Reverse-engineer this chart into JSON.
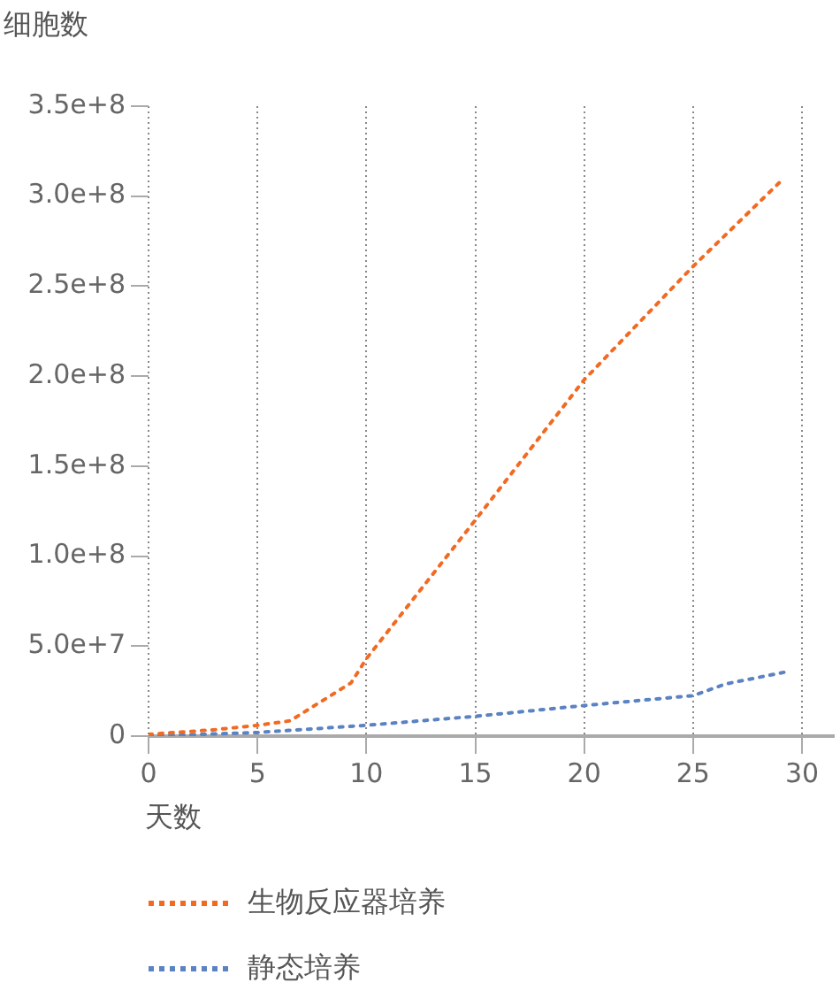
{
  "chart_data": {
    "type": "line",
    "ylabel": "细胞数",
    "xlabel": "天数",
    "xlim": [
      0,
      31.5
    ],
    "xticks": [
      0,
      5,
      10,
      15,
      20,
      25,
      30
    ],
    "ylim": [
      0,
      350000000
    ],
    "yticks": [
      {
        "value": 0,
        "label": "0"
      },
      {
        "value": 50000000,
        "label": "5.0e+7"
      },
      {
        "value": 100000000,
        "label": "1.0e+8"
      },
      {
        "value": 150000000,
        "label": "1.5e+8"
      },
      {
        "value": 200000000,
        "label": "2.0e+8"
      },
      {
        "value": 250000000,
        "label": "2.5e+8"
      },
      {
        "value": 300000000,
        "label": "3.0e+8"
      },
      {
        "value": 350000000,
        "label": "3.5e+8"
      }
    ],
    "grid": "x",
    "legend": "bottom",
    "marker": "none",
    "line_style": "dotted",
    "series": [
      {
        "name": "生物反应器培养",
        "color": "#f26a22",
        "x": [
          0,
          3,
          5,
          6.5,
          9.3,
          10,
          15,
          20,
          25,
          29
        ],
        "values": [
          1000000,
          3500000,
          6000000,
          8500000,
          29600000,
          43000000,
          120000000,
          198000000,
          261000000,
          308000000
        ]
      },
      {
        "name": "静态培养",
        "color": "#5b82c2",
        "x": [
          0,
          5,
          10,
          15,
          20,
          25,
          26.5,
          29.4
        ],
        "values": [
          0,
          2000000,
          6000000,
          11000000,
          17000000,
          22500000,
          29000000,
          36000000
        ]
      }
    ]
  }
}
